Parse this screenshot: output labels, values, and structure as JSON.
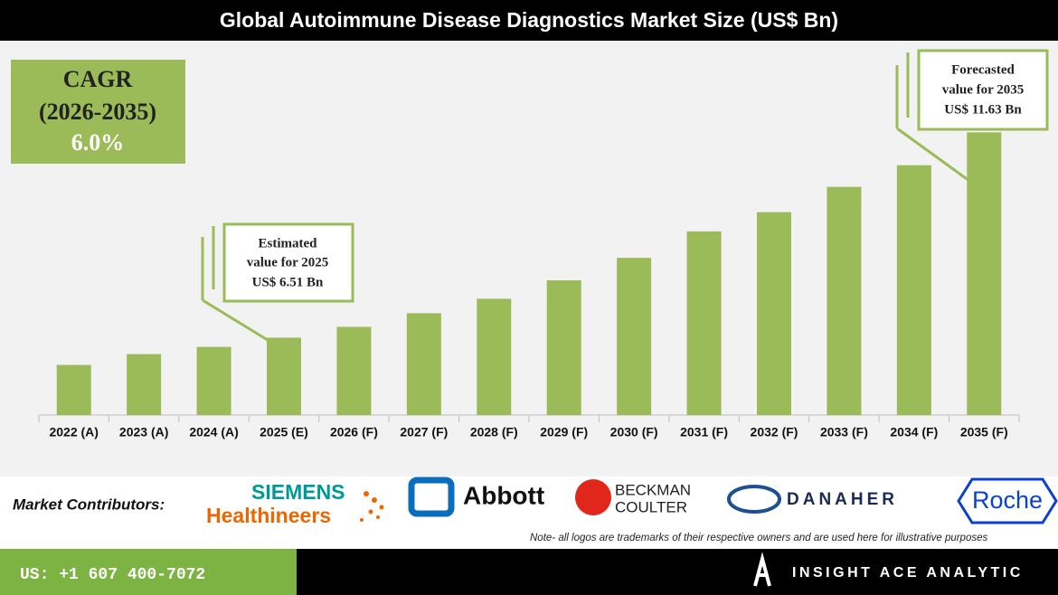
{
  "chart_data": {
    "type": "bar",
    "title": "Global Autoimmune Disease Diagnostics Market Size (US$ Bn)",
    "categories": [
      "2022 (A)",
      "2023 (A)",
      "2024 (A)",
      "2025 (E)",
      "2026 (F)",
      "2027 (F)",
      "2028 (F)",
      "2029 (F)",
      "2030 (F)",
      "2031 (F)",
      "2032 (F)",
      "2033 (F)",
      "2034 (F)",
      "2035 (F)"
    ],
    "values": [
      5.83,
      6.1,
      6.28,
      6.51,
      6.78,
      7.12,
      7.48,
      7.94,
      8.5,
      9.16,
      9.64,
      10.27,
      10.81,
      11.63
    ],
    "color": "#9bbb59",
    "ylim": [
      4.58,
      13.6
    ],
    "annotations": [
      {
        "lines": [
          "Estimated",
          "value for 2025",
          "US$ 6.51 Bn"
        ]
      },
      {
        "lines": [
          "Forecasted",
          "value for 2035",
          "US$ 11.63 Bn"
        ]
      }
    ]
  },
  "cagr": {
    "lines": [
      "CAGR",
      "(2026-2035)",
      "6.0%"
    ]
  },
  "contributors": {
    "label": "Market Contributors:",
    "logos": [
      "SIEMENS",
      "Healthineers",
      "Abbott",
      "BECKMAN",
      "COULTER",
      "DANAHER",
      "Roche"
    ],
    "note": "Note- all logos are trademarks of their respective owners and are used here for illustrative purposes"
  },
  "footer": {
    "phone": "US: +1 607 400-7072",
    "brand": "INSIGHT ACE ANALYTIC"
  }
}
